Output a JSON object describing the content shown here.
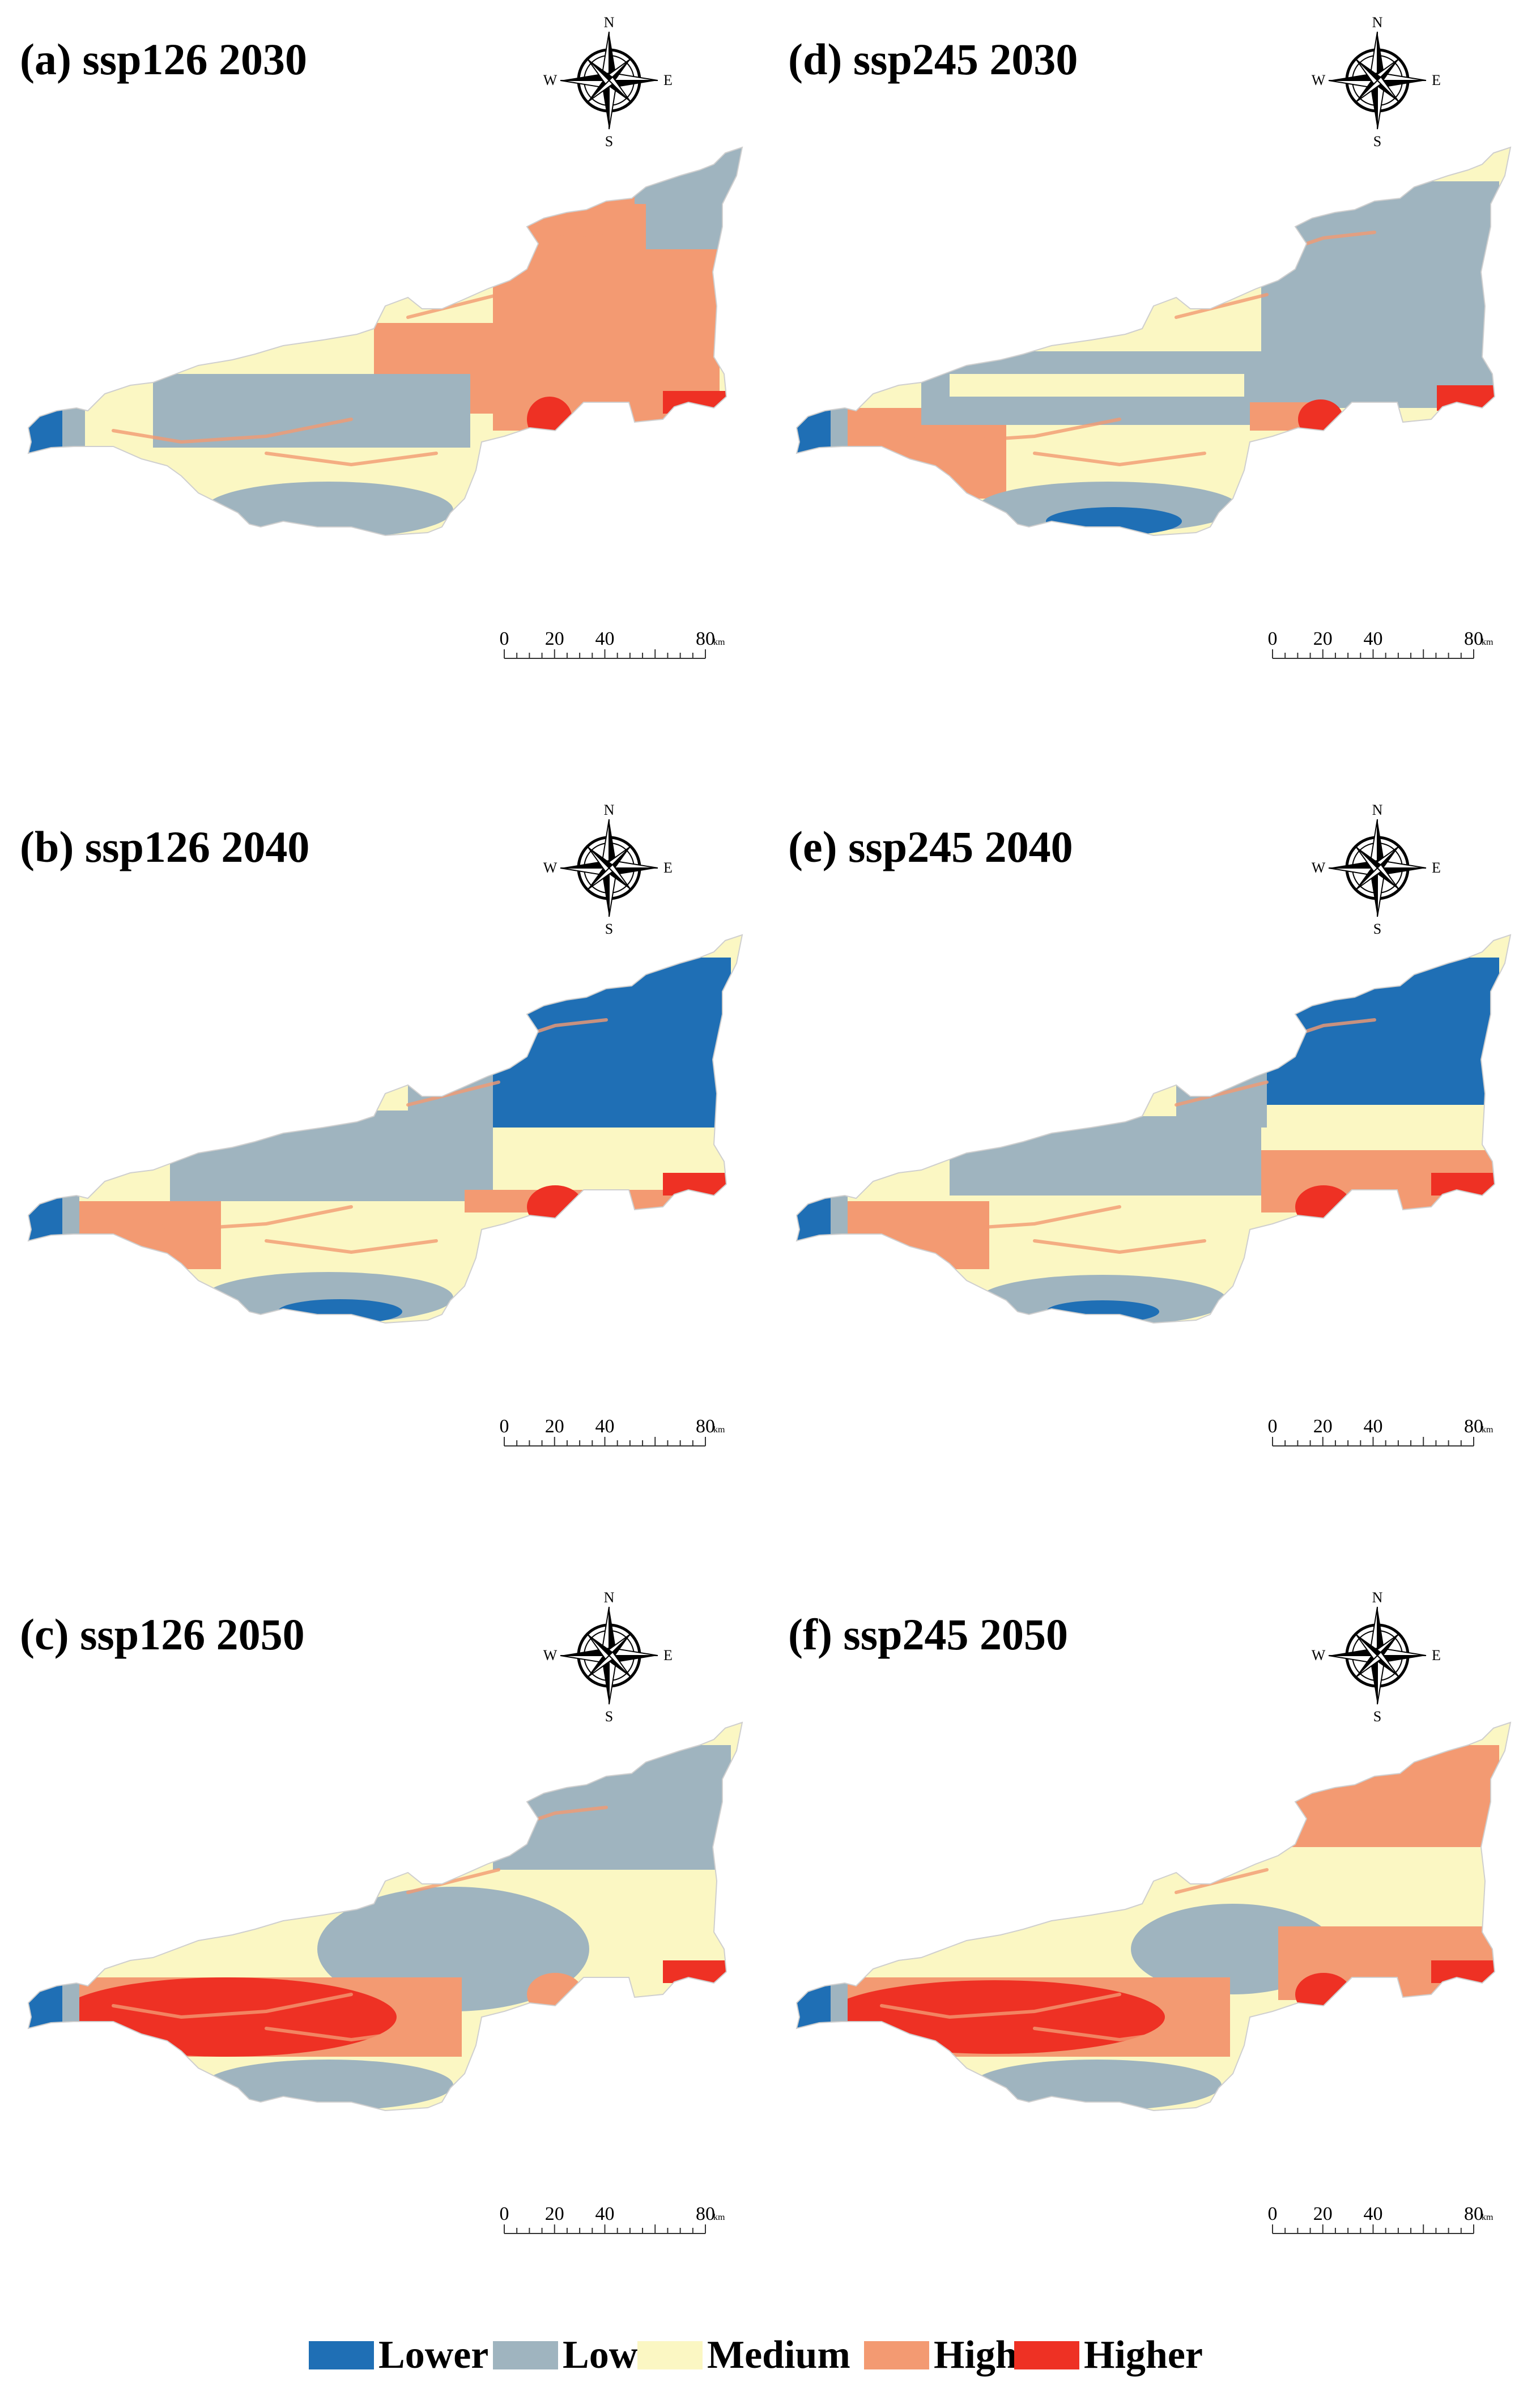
{
  "panels": [
    {
      "id": "a",
      "title": "(a) ssp126 2030"
    },
    {
      "id": "d",
      "title": "(d) ssp245 2030"
    },
    {
      "id": "b",
      "title": "(b) ssp126 2040"
    },
    {
      "id": "e",
      "title": "(e) ssp245 2040"
    },
    {
      "id": "c",
      "title": "(c) ssp126 2050"
    },
    {
      "id": "f",
      "title": "(f) ssp245 2050"
    }
  ],
  "compass": {
    "north": "N",
    "south": "S",
    "east": "E",
    "west": "W"
  },
  "scale_bar": {
    "labels": [
      "0",
      "20",
      "40",
      "80"
    ],
    "unit": "km"
  },
  "legend": [
    {
      "label": "Lower",
      "color": "#1f6fb5"
    },
    {
      "label": "Low",
      "color": "#9fb4bf"
    },
    {
      "label": "Medium",
      "color": "#fbf7c3"
    },
    {
      "label": "High",
      "color": "#f39a72"
    },
    {
      "label": "Higher",
      "color": "#ee3124"
    }
  ]
}
